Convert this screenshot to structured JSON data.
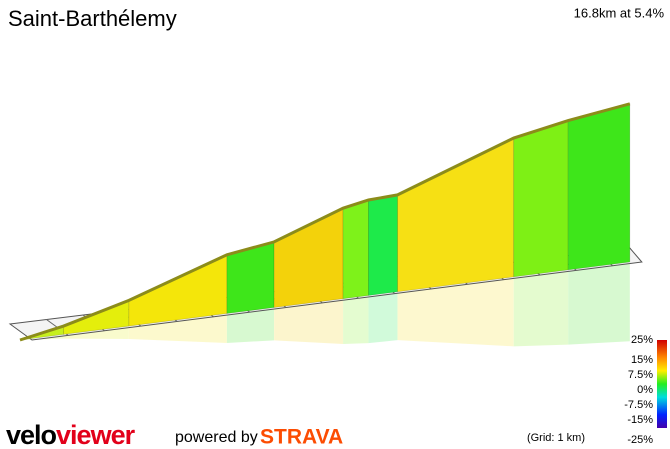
{
  "chart_data": {
    "type": "profile",
    "title": "Saint-Barthélemy",
    "subtitle": "16.8km at 5.4%",
    "segments": {
      "km": [
        1.2,
        1.8,
        2.7,
        1.3,
        1.9,
        0.7,
        0.8,
        3.2,
        1.5,
        1.7
      ],
      "gradient": [
        4,
        5.5,
        7,
        3,
        7.5,
        4,
        1,
        7.5,
        4,
        3
      ],
      "color": [
        "#c6f01e",
        "#e4ee0c",
        "#f4e60a",
        "#3ee61a",
        "#f3d20b",
        "#7ef21a",
        "#1eea4a",
        "#f6e014",
        "#7ef015",
        "#3ee61a"
      ]
    },
    "colorbar": {
      "ticks": [
        {
          "value": 25,
          "label": "25%"
        },
        {
          "value": 15,
          "label": "15%"
        },
        {
          "value": 7.5,
          "label": "7.5%"
        },
        {
          "value": 0,
          "label": "0%"
        },
        {
          "value": -7.5,
          "label": "-7.5%"
        },
        {
          "value": -15,
          "label": "-15%"
        },
        {
          "value": -25,
          "label": "-25%"
        }
      ]
    },
    "grid_note": "(Grid: 1 km)"
  },
  "footer": {
    "logo_velo": "velo",
    "logo_viewer": "viewer",
    "powered": "powered by",
    "strava": "STRAVA"
  }
}
